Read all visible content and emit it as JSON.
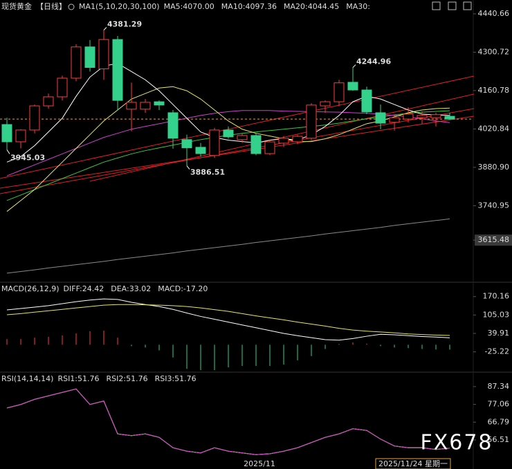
{
  "chart_data": [
    {
      "type": "candlestick",
      "title": "现货黄金",
      "period": "【日线】",
      "indicator": "MA1(5,10,20,30,100)",
      "categories": [
        null,
        null,
        null,
        null,
        null,
        null,
        null,
        null,
        null,
        null,
        null,
        null,
        null,
        null,
        null,
        null,
        null,
        null,
        "2025/11",
        null,
        null,
        null,
        null,
        null,
        null,
        null,
        null,
        null,
        null,
        null,
        null,
        null,
        null
      ],
      "open": [
        4037,
        3974,
        4017,
        4105,
        4138,
        4206,
        4320,
        4240,
        4347,
        4093,
        4093,
        4120,
        4080,
        3982,
        3954,
        3924,
        4017,
        3982,
        3997,
        3931,
        3969,
        3974,
        3987,
        4105,
        4120,
        4191,
        4163,
        4080,
        4045,
        4057,
        4062,
        4062,
        4067
      ],
      "high": [
        4062,
        4020,
        4110,
        4150,
        4215,
        4330,
        4345,
        4381.29,
        4360,
        4190,
        4130,
        4125,
        4090,
        4000,
        3970,
        4025,
        4030,
        4005,
        4005,
        3980,
        3995,
        4000,
        4115,
        4125,
        4200,
        4244.96,
        4175,
        4110,
        4070,
        4100,
        4085,
        4080,
        4080
      ],
      "low": [
        3945.03,
        3950,
        4005,
        4095,
        4125,
        4195,
        4230,
        4200,
        4088,
        4012,
        4080,
        4090,
        3949,
        3886.51,
        3920,
        3915,
        3985,
        3970,
        3925,
        3925,
        3955,
        3965,
        3980,
        4080,
        4105,
        4160,
        4075,
        4020,
        4015,
        4045,
        4040,
        4030,
        4055
      ],
      "close": [
        3974,
        4017,
        4105,
        4138,
        4206,
        4320,
        4245,
        4347,
        4125,
        4118,
        4118,
        4108,
        3987,
        3952,
        3931,
        4017,
        3992,
        3997,
        3931,
        3974,
        3987,
        3994,
        4108,
        4120,
        4189,
        4163,
        4083,
        4042,
        4062,
        4075,
        4070,
        4073,
        4057
      ],
      "up_color": "#ff3b3b",
      "down_color": "#33d18c",
      "series": [
        {
          "name": "MA5:4070.00",
          "color": "#ffffff",
          "values": [
            3900,
            3920,
            3960,
            4010,
            4060,
            4140,
            4210,
            4250,
            4260,
            4230,
            4200,
            4160,
            4110,
            4060,
            4010,
            3990,
            3980,
            3975,
            3970,
            3980,
            3985,
            3980,
            4000,
            4030,
            4070,
            4120,
            4140,
            4130,
            4110,
            4090,
            4075,
            4072,
            4070
          ]
        },
        {
          "name": "MA10:4097.36",
          "color": "#e6e66a",
          "values": [
            3720,
            3760,
            3800,
            3850,
            3900,
            3950,
            4000,
            4050,
            4090,
            4130,
            4150,
            4170,
            4175,
            4160,
            4130,
            4090,
            4050,
            4020,
            4005,
            3995,
            3985,
            3975,
            3975,
            3985,
            4000,
            4020,
            4040,
            4050,
            4065,
            4080,
            4090,
            4095,
            4097
          ]
        },
        {
          "name": "MA20:4044.45",
          "color": "#d13fd1",
          "values": [
            3850,
            3870,
            3890,
            3910,
            3930,
            3950,
            3970,
            3990,
            4005,
            4020,
            4030,
            4040,
            4050,
            4060,
            4070,
            4078,
            4084,
            4088,
            4088,
            4088,
            4086,
            4085,
            4084,
            4083,
            4082,
            4080,
            4078,
            4075,
            4070,
            4065,
            4058,
            4050,
            4044
          ]
        },
        {
          "name": "MA30:",
          "color": "#3cc83c",
          "values": [
            3760,
            3780,
            3800,
            3820,
            3840,
            3860,
            3880,
            3900,
            3915,
            3930,
            3942,
            3952,
            3962,
            3972,
            3982,
            3990,
            3998,
            4005,
            4010,
            4015,
            4020,
            4025,
            4030,
            4035,
            4042,
            4050,
            4058,
            4065,
            4072,
            4078,
            4082,
            4085,
            4087
          ]
        },
        {
          "color": "#8a8a8a",
          "values": [
            3495,
            3501,
            3507,
            3514,
            3520,
            3526,
            3532,
            3538,
            3545,
            3551,
            3557,
            3563,
            3569,
            3576,
            3582,
            3588,
            3594,
            3600,
            3607,
            3613,
            3619,
            3625,
            3631,
            3638,
            3644,
            3650,
            3656,
            3662,
            3669,
            3675,
            3681,
            3687,
            3693
          ]
        }
      ],
      "ylim": [
        3462,
        4491
      ],
      "yticks": [
        4440.66,
        4300.72,
        4160.78,
        4020.84,
        {
          "value": 3880.9,
          "label": "3880.90"
        },
        3740.95,
        3615.48
      ],
      "high_label_color": "#ff4d4d",
      "low_label_color": "#33d18c"
    },
    {
      "type": "macd",
      "title": "MACD(26,12,9)",
      "series": [
        {
          "name": "DIFF:24.42",
          "color": "#ffffff",
          "values": [
            123,
            128,
            133,
            138,
            145,
            152,
            158,
            162,
            160,
            150,
            142,
            135,
            125,
            112,
            100,
            90,
            80,
            70,
            60,
            50,
            40,
            32,
            25,
            18,
            16,
            22,
            30,
            37,
            35,
            32,
            29,
            27,
            24.42
          ]
        },
        {
          "name": "DEA:33.02",
          "color": "#e6e66a",
          "values": [
            106,
            110,
            115,
            120,
            125,
            130,
            135,
            140,
            142,
            142,
            141,
            140,
            138,
            135,
            130,
            124,
            118,
            110,
            102,
            95,
            88,
            80,
            73,
            66,
            58,
            52,
            48,
            45,
            42,
            38,
            36,
            34,
            33.02
          ]
        },
        {
          "name": "MACD:-17.20",
          "color": "#d13fd1",
          "histogram": true,
          "values": [
            20,
            20,
            25,
            28,
            33,
            40,
            48,
            50,
            25,
            -5,
            -10,
            -20,
            -45,
            -85,
            -90,
            -90,
            -80,
            -75,
            -75,
            -75,
            -70,
            -55,
            -40,
            -15,
            3,
            8,
            4,
            -5,
            -10,
            -12,
            -15,
            -17,
            -17.2
          ]
        }
      ],
      "up_color": "#ff3b3b",
      "down_color": "#33d18c",
      "ylim": [
        -97,
        216
      ],
      "yticks": [
        170.16,
        105.03,
        39.91,
        -25.22
      ]
    },
    {
      "type": "rsi",
      "title": "RSI(14,14,14)",
      "series": [
        {
          "name": "RSI1:51.76",
          "color": "#ffffff",
          "values": [
            75,
            77,
            80,
            82,
            84,
            86,
            77,
            79,
            60,
            59,
            60,
            58,
            52,
            50,
            49,
            52,
            50,
            49,
            48,
            48.5,
            50,
            52,
            55,
            58,
            60,
            63,
            62,
            57,
            53,
            52,
            52,
            51,
            51.76
          ]
        },
        {
          "name": "RSI2:51.76",
          "color": "#e6e66a",
          "values": [
            75,
            77,
            80,
            82,
            84,
            86,
            77,
            79,
            60,
            59,
            60,
            58,
            52,
            50,
            49,
            52,
            50,
            49,
            48,
            48.5,
            50,
            52,
            55,
            58,
            60,
            63,
            62,
            57,
            53,
            52,
            52,
            51,
            51.76
          ]
        },
        {
          "name": "RSI3:51.76",
          "color": "#d13fd1",
          "values": [
            75,
            77,
            80,
            82,
            84,
            86,
            77,
            79,
            60,
            59,
            60,
            58,
            52,
            50,
            49,
            52,
            50,
            49,
            48,
            48.5,
            50,
            52,
            55,
            58,
            60,
            63,
            62,
            57,
            53,
            52,
            52,
            51,
            51.76
          ]
        }
      ],
      "ylim": [
        39.7,
        94.9
      ],
      "yticks": [
        87.34,
        77.06,
        66.79,
        56.51
      ],
      "cursor_date": "2025/11/24 星期一"
    }
  ],
  "watermark": "FX678"
}
